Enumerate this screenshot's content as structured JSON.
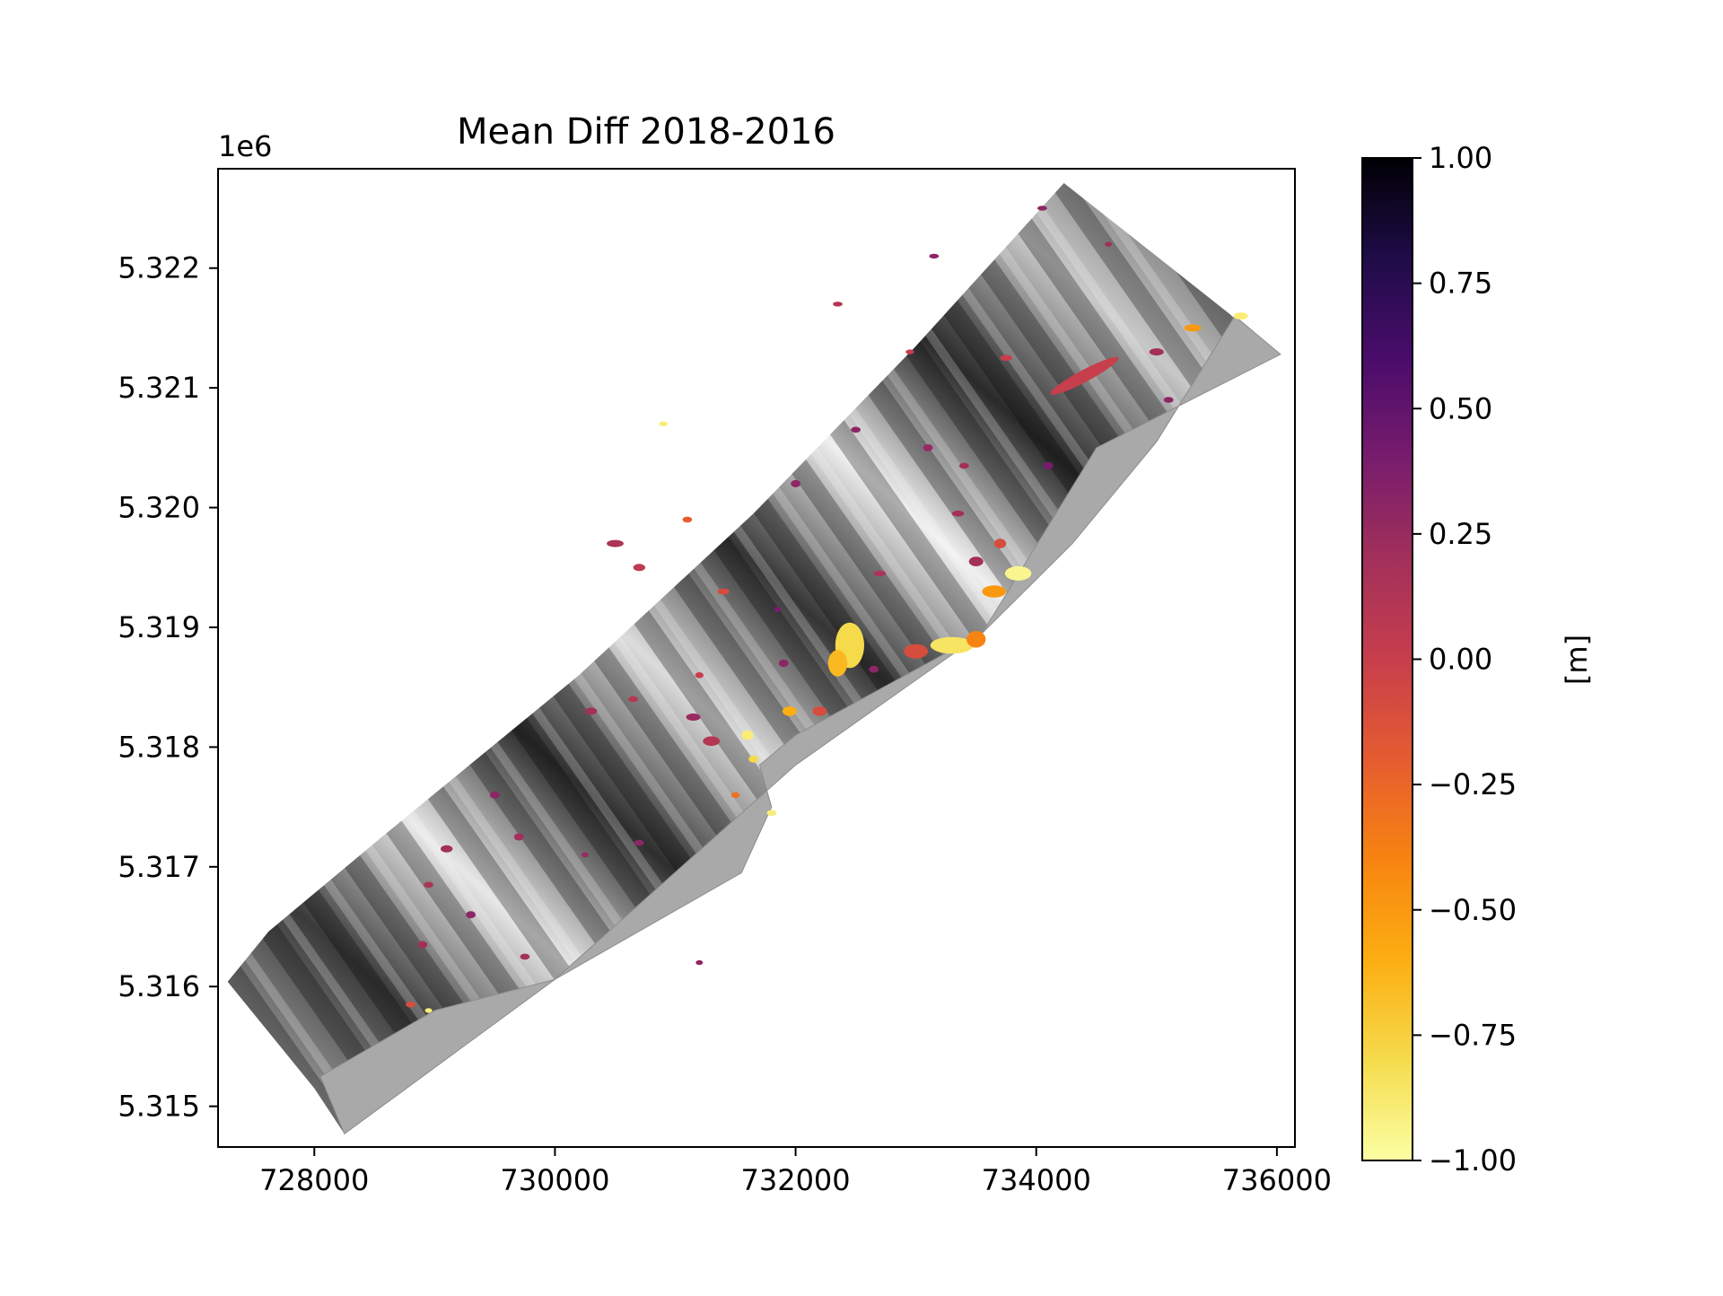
{
  "chart_data": {
    "type": "heatmap",
    "title": "Mean Diff 2018-2016",
    "xlabel": "",
    "ylabel": "",
    "y_offset_label": "1e6",
    "xlim": [
      727200,
      736150
    ],
    "ylim": [
      5314660,
      5322830
    ],
    "x_ticks": [
      728000,
      730000,
      732000,
      734000,
      736000
    ],
    "x_tick_labels": [
      "728000",
      "730000",
      "732000",
      "734000",
      "736000"
    ],
    "y_ticks": [
      5315000,
      5316000,
      5317000,
      5318000,
      5319000,
      5320000,
      5321000,
      5322000
    ],
    "y_tick_labels": [
      "5.315",
      "5.316",
      "5.317",
      "5.318",
      "5.319",
      "5.320",
      "5.321",
      "5.322"
    ],
    "grid": false,
    "colorbar": {
      "label": "[m]",
      "colormap": "inferno_r",
      "vmin": -1.0,
      "vmax": 1.0,
      "ticks": [
        1.0,
        0.75,
        0.5,
        0.25,
        0.0,
        -0.25,
        -0.5,
        -0.75,
        -1.0
      ],
      "tick_labels": [
        "1.00",
        "0.75",
        "0.50",
        "0.25",
        "0.00",
        "−0.25",
        "−0.50",
        "−0.75",
        "−1.00"
      ],
      "colors": [
        "#fcffa4",
        "#f5db4c",
        "#fcae12",
        "#f78410",
        "#e55c30",
        "#c73e4c",
        "#a2305a",
        "#781c6d",
        "#4a0c6b",
        "#1f0c48",
        "#000004"
      ]
    },
    "study_area_outline": [
      [
        727280,
        5316040
      ],
      [
        727620,
        5316460
      ],
      [
        728550,
        5317240
      ],
      [
        730200,
        5318600
      ],
      [
        731650,
        5319950
      ],
      [
        733000,
        5321350
      ],
      [
        734230,
        5322710
      ],
      [
        735000,
        5322100
      ],
      [
        736030,
        5321280
      ],
      [
        734500,
        5320500
      ],
      [
        733550,
        5318950
      ],
      [
        732000,
        5317850
      ],
      [
        730000,
        5316060
      ],
      [
        728250,
        5314770
      ],
      [
        728000,
        5315150
      ]
    ],
    "water_area_outline": [
      [
        728050,
        5315250
      ],
      [
        729000,
        5315800
      ],
      [
        730000,
        5316060
      ],
      [
        731550,
        5316950
      ],
      [
        731800,
        5317500
      ],
      [
        731700,
        5317850
      ],
      [
        732000,
        5318100
      ],
      [
        733550,
        5318950
      ],
      [
        734300,
        5319700
      ],
      [
        735000,
        5320550
      ],
      [
        735650,
        5321600
      ],
      [
        736030,
        5321280
      ],
      [
        734500,
        5320500
      ],
      [
        733550,
        5318950
      ],
      [
        732000,
        5317850
      ],
      [
        730000,
        5316060
      ],
      [
        728250,
        5314770
      ]
    ],
    "change_patches": [
      {
        "x": 732450,
        "y": 5318850,
        "rx": 120,
        "ry": 190,
        "value": -0.8
      },
      {
        "x": 732350,
        "y": 5318700,
        "rx": 80,
        "ry": 110,
        "value": -0.65
      },
      {
        "x": 733300,
        "y": 5318850,
        "rx": 180,
        "ry": 70,
        "value": -0.85
      },
      {
        "x": 733500,
        "y": 5318900,
        "rx": 80,
        "ry": 70,
        "value": -0.4
      },
      {
        "x": 733000,
        "y": 5318800,
        "rx": 100,
        "ry": 60,
        "value": -0.1
      },
      {
        "x": 733650,
        "y": 5319300,
        "rx": 100,
        "ry": 50,
        "value": -0.5
      },
      {
        "x": 733850,
        "y": 5319450,
        "rx": 110,
        "ry": 60,
        "value": -0.95
      },
      {
        "x": 733500,
        "y": 5319550,
        "rx": 60,
        "ry": 40,
        "value": 0.2
      },
      {
        "x": 733700,
        "y": 5319700,
        "rx": 50,
        "ry": 40,
        "value": -0.1
      },
      {
        "x": 734400,
        "y": 5321100,
        "rx": 320,
        "ry": 50,
        "value": 0.0,
        "rotate": -28
      },
      {
        "x": 735300,
        "y": 5321500,
        "rx": 70,
        "ry": 30,
        "value": -0.5
      },
      {
        "x": 735700,
        "y": 5321600,
        "rx": 60,
        "ry": 30,
        "value": -0.9
      },
      {
        "x": 735000,
        "y": 5321300,
        "rx": 60,
        "ry": 30,
        "value": 0.2
      },
      {
        "x": 731950,
        "y": 5318300,
        "rx": 60,
        "ry": 40,
        "value": -0.6
      },
      {
        "x": 732200,
        "y": 5318300,
        "rx": 60,
        "ry": 40,
        "value": -0.1
      },
      {
        "x": 731600,
        "y": 5318100,
        "rx": 50,
        "ry": 40,
        "value": -0.9
      },
      {
        "x": 731650,
        "y": 5317900,
        "rx": 40,
        "ry": 30,
        "value": -0.8
      },
      {
        "x": 731300,
        "y": 5318050,
        "rx": 70,
        "ry": 40,
        "value": 0.1
      },
      {
        "x": 731150,
        "y": 5318250,
        "rx": 60,
        "ry": 30,
        "value": 0.25
      },
      {
        "x": 731800,
        "y": 5317450,
        "rx": 40,
        "ry": 25,
        "value": -0.9
      },
      {
        "x": 731500,
        "y": 5317600,
        "rx": 35,
        "ry": 25,
        "value": -0.3
      },
      {
        "x": 731400,
        "y": 5319300,
        "rx": 50,
        "ry": 25,
        "value": -0.1
      },
      {
        "x": 730700,
        "y": 5319500,
        "rx": 50,
        "ry": 30,
        "value": 0.05
      },
      {
        "x": 730500,
        "y": 5319700,
        "rx": 70,
        "ry": 30,
        "value": 0.15
      },
      {
        "x": 730300,
        "y": 5318300,
        "rx": 50,
        "ry": 30,
        "value": 0.2
      },
      {
        "x": 730650,
        "y": 5318400,
        "rx": 40,
        "ry": 25,
        "value": 0.1
      },
      {
        "x": 731900,
        "y": 5318700,
        "rx": 40,
        "ry": 30,
        "value": 0.3
      },
      {
        "x": 732650,
        "y": 5318650,
        "rx": 40,
        "ry": 30,
        "value": 0.3
      },
      {
        "x": 732700,
        "y": 5319450,
        "rx": 50,
        "ry": 25,
        "value": 0.15
      },
      {
        "x": 733350,
        "y": 5319950,
        "rx": 50,
        "ry": 25,
        "value": 0.2
      },
      {
        "x": 733400,
        "y": 5320350,
        "rx": 40,
        "ry": 25,
        "value": 0.2
      },
      {
        "x": 732000,
        "y": 5320200,
        "rx": 40,
        "ry": 30,
        "value": 0.3
      },
      {
        "x": 733100,
        "y": 5320500,
        "rx": 40,
        "ry": 30,
        "value": 0.25
      },
      {
        "x": 732500,
        "y": 5320650,
        "rx": 40,
        "ry": 25,
        "value": 0.3
      },
      {
        "x": 733750,
        "y": 5321250,
        "rx": 50,
        "ry": 25,
        "value": 0.0
      },
      {
        "x": 732350,
        "y": 5321700,
        "rx": 40,
        "ry": 20,
        "value": 0.1
      },
      {
        "x": 733150,
        "y": 5322100,
        "rx": 40,
        "ry": 20,
        "value": 0.3
      },
      {
        "x": 734050,
        "y": 5322500,
        "rx": 40,
        "ry": 20,
        "value": 0.3
      },
      {
        "x": 734600,
        "y": 5322200,
        "rx": 30,
        "ry": 20,
        "value": 0.2
      },
      {
        "x": 735100,
        "y": 5320900,
        "rx": 40,
        "ry": 25,
        "value": 0.3
      },
      {
        "x": 734100,
        "y": 5320350,
        "rx": 40,
        "ry": 30,
        "value": 0.4
      },
      {
        "x": 731100,
        "y": 5319900,
        "rx": 40,
        "ry": 25,
        "value": -0.2
      },
      {
        "x": 729100,
        "y": 5317150,
        "rx": 50,
        "ry": 30,
        "value": 0.2
      },
      {
        "x": 729700,
        "y": 5317250,
        "rx": 40,
        "ry": 30,
        "value": 0.2
      },
      {
        "x": 728950,
        "y": 5316850,
        "rx": 40,
        "ry": 25,
        "value": 0.15
      },
      {
        "x": 728900,
        "y": 5316350,
        "rx": 40,
        "ry": 30,
        "value": 0.2
      },
      {
        "x": 729300,
        "y": 5316600,
        "rx": 40,
        "ry": 30,
        "value": 0.3
      },
      {
        "x": 728800,
        "y": 5315850,
        "rx": 40,
        "ry": 25,
        "value": -0.1
      },
      {
        "x": 728950,
        "y": 5315800,
        "rx": 30,
        "ry": 20,
        "value": -0.9
      },
      {
        "x": 729750,
        "y": 5316250,
        "rx": 40,
        "ry": 25,
        "value": 0.2
      },
      {
        "x": 730700,
        "y": 5317200,
        "rx": 40,
        "ry": 25,
        "value": 0.3
      },
      {
        "x": 729500,
        "y": 5317600,
        "rx": 40,
        "ry": 30,
        "value": 0.3
      },
      {
        "x": 731200,
        "y": 5318600,
        "rx": 35,
        "ry": 25,
        "value": 0.0
      },
      {
        "x": 731850,
        "y": 5319150,
        "rx": 30,
        "ry": 20,
        "value": 0.4
      },
      {
        "x": 730900,
        "y": 5320700,
        "rx": 35,
        "ry": 20,
        "value": -0.9
      },
      {
        "x": 732950,
        "y": 5321300,
        "rx": 35,
        "ry": 20,
        "value": 0.0
      },
      {
        "x": 731200,
        "y": 5316200,
        "rx": 30,
        "ry": 20,
        "value": 0.3
      },
      {
        "x": 730250,
        "y": 5317100,
        "rx": 30,
        "ry": 20,
        "value": 0.25
      }
    ]
  }
}
